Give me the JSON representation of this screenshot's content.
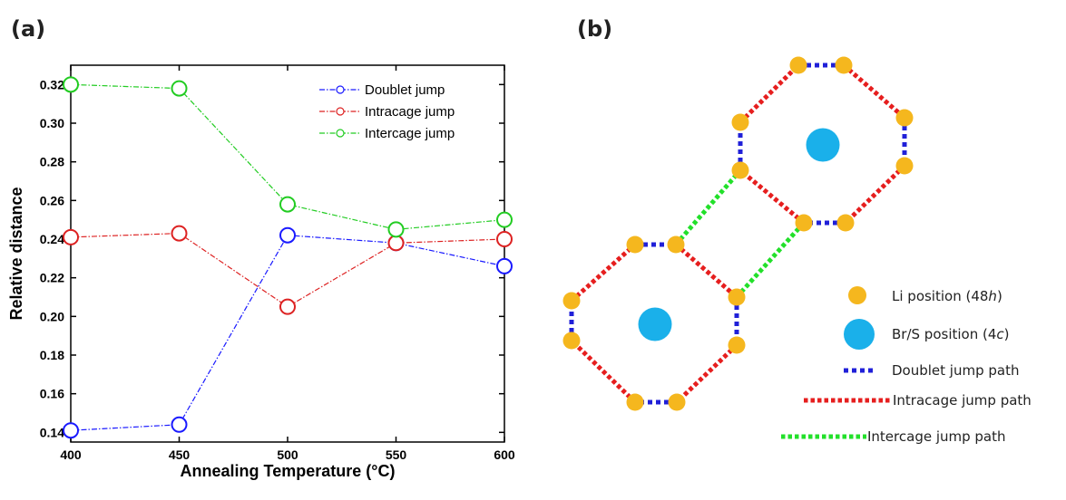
{
  "panels": {
    "a": "(a)",
    "b": "(b)"
  },
  "chart_data": {
    "type": "line",
    "xlabel": "Annealing Temperature (°C)",
    "ylabel": "Relative distance",
    "x": [
      400,
      450,
      500,
      550,
      600
    ],
    "xlim": [
      400,
      600
    ],
    "ylim": [
      0.135,
      0.33
    ],
    "xticks": [
      "400",
      "450",
      "500",
      "550",
      "600"
    ],
    "yticks": [
      "0.14",
      "0.16",
      "0.18",
      "0.20",
      "0.22",
      "0.24",
      "0.26",
      "0.28",
      "0.30",
      "0.32"
    ],
    "legend_position": "top-right",
    "grid": false,
    "series": [
      {
        "name": "Doublet jump",
        "color": "#1a1aff",
        "values": [
          0.141,
          0.144,
          0.242,
          0.238,
          0.226
        ]
      },
      {
        "name": "Intracage jump",
        "color": "#dd2222",
        "values": [
          0.241,
          0.243,
          0.205,
          0.238,
          0.24
        ]
      },
      {
        "name": "Intercage jump",
        "color": "#22cc22",
        "values": [
          0.32,
          0.318,
          0.258,
          0.245,
          0.25
        ]
      }
    ]
  },
  "diagram": {
    "legend": {
      "li": {
        "text": "Li position (48",
        "italic": "h",
        "close": ")"
      },
      "brs": {
        "text": "Br/S position (4",
        "italic": "c",
        "close": ")"
      },
      "doublet": "Doublet jump path",
      "intracage": "Intracage jump path",
      "intercage": "Intercage jump path"
    },
    "colors": {
      "li": "#f5b71e",
      "brs": "#1ab0ea",
      "doublet": "#2020d8",
      "intracage": "#e61e1e",
      "intercage": "#22e02a"
    }
  }
}
